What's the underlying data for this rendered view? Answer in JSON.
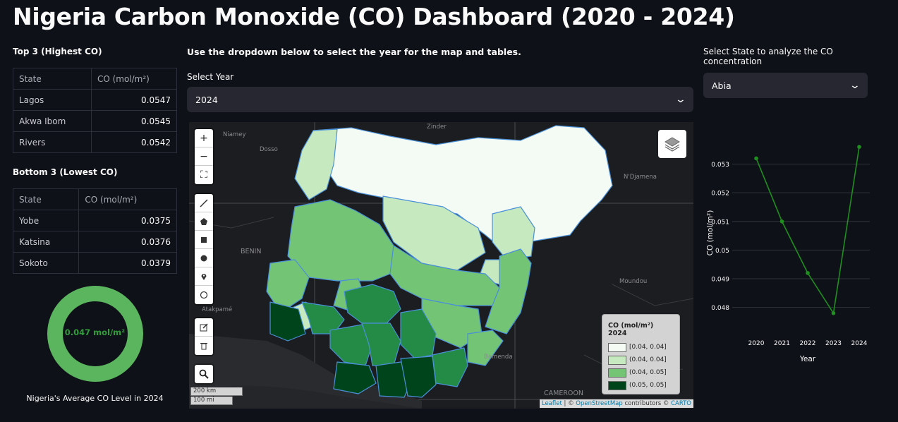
{
  "title": "Nigeria Carbon Monoxide (CO) Dashboard (2020 - 2024)",
  "top3": {
    "heading": "Top 3 (Highest CO)",
    "col_state": "State",
    "col_co": "CO (mol/m²)",
    "rows": [
      {
        "state": "Lagos",
        "co": "0.0547"
      },
      {
        "state": "Akwa Ibom",
        "co": "0.0545"
      },
      {
        "state": "Rivers",
        "co": "0.0542"
      }
    ]
  },
  "bottom3": {
    "heading": "Bottom 3 (Lowest CO)",
    "col_state": "State",
    "col_co": "CO (mol/m²)",
    "rows": [
      {
        "state": "Yobe",
        "co": "0.0375"
      },
      {
        "state": "Katsina",
        "co": "0.0376"
      },
      {
        "state": "Sokoto",
        "co": "0.0379"
      }
    ]
  },
  "average": {
    "value": "0.047 mol/m²",
    "caption": "Nigeria's Average CO Level in 2024",
    "ring_color": "#5bb55f",
    "text_color": "#2f9e3a"
  },
  "map_section": {
    "instruction": "Use the dropdown below to select the year for the map and tables.",
    "year_label": "Select Year",
    "year_value": "2024",
    "scale_km": "200 km",
    "scale_mi": "100 mi",
    "attribution": {
      "leaflet": "Leaflet",
      "osm": "OpenStreetMap",
      "contributors": "contributors ©",
      "carto": "CARTO"
    },
    "place_labels": {
      "niamey": "Niamey",
      "zinder": "Zinder",
      "dosso": "Dosso",
      "benin": "BENIN",
      "ndjamena": "N'Djamena",
      "moundou": "Moundou",
      "bamenda": "Bamenda",
      "cameroon": "CAMEROON",
      "atakpame": "Atakpamé"
    },
    "controls": [
      "zoom-in",
      "zoom-out",
      "fullscreen",
      "draw-polyline",
      "draw-polygon",
      "draw-rectangle",
      "draw-circle",
      "draw-marker",
      "draw-circlemarker",
      "edit",
      "delete",
      "search"
    ],
    "legend": {
      "title": "CO (mol/m²) 2024",
      "items": [
        {
          "label": "[0.04, 0.04]",
          "color": "#f4fbf4"
        },
        {
          "label": "(0.04, 0.04]",
          "color": "#c7e9c0"
        },
        {
          "label": "(0.04, 0.05]",
          "color": "#74c476"
        },
        {
          "label": "(0.05, 0.05]",
          "color": "#00441b"
        }
      ]
    }
  },
  "state_section": {
    "label": "Select State to analyze the CO concentration",
    "value": "Abia"
  },
  "chart_data": {
    "type": "line",
    "x": [
      2020,
      2021,
      2022,
      2023,
      2024
    ],
    "series": [
      {
        "values": [
          0.0532,
          0.051,
          0.0492,
          0.0478,
          0.0536
        ],
        "color": "#1f8f1f"
      }
    ],
    "xlabel": "Year",
    "ylabel": "CO (mol/m²)",
    "yticks": [
      0.048,
      0.049,
      0.05,
      0.051,
      0.052,
      0.053
    ],
    "ylim": [
      0.0474,
      0.0538
    ],
    "grid": true
  }
}
